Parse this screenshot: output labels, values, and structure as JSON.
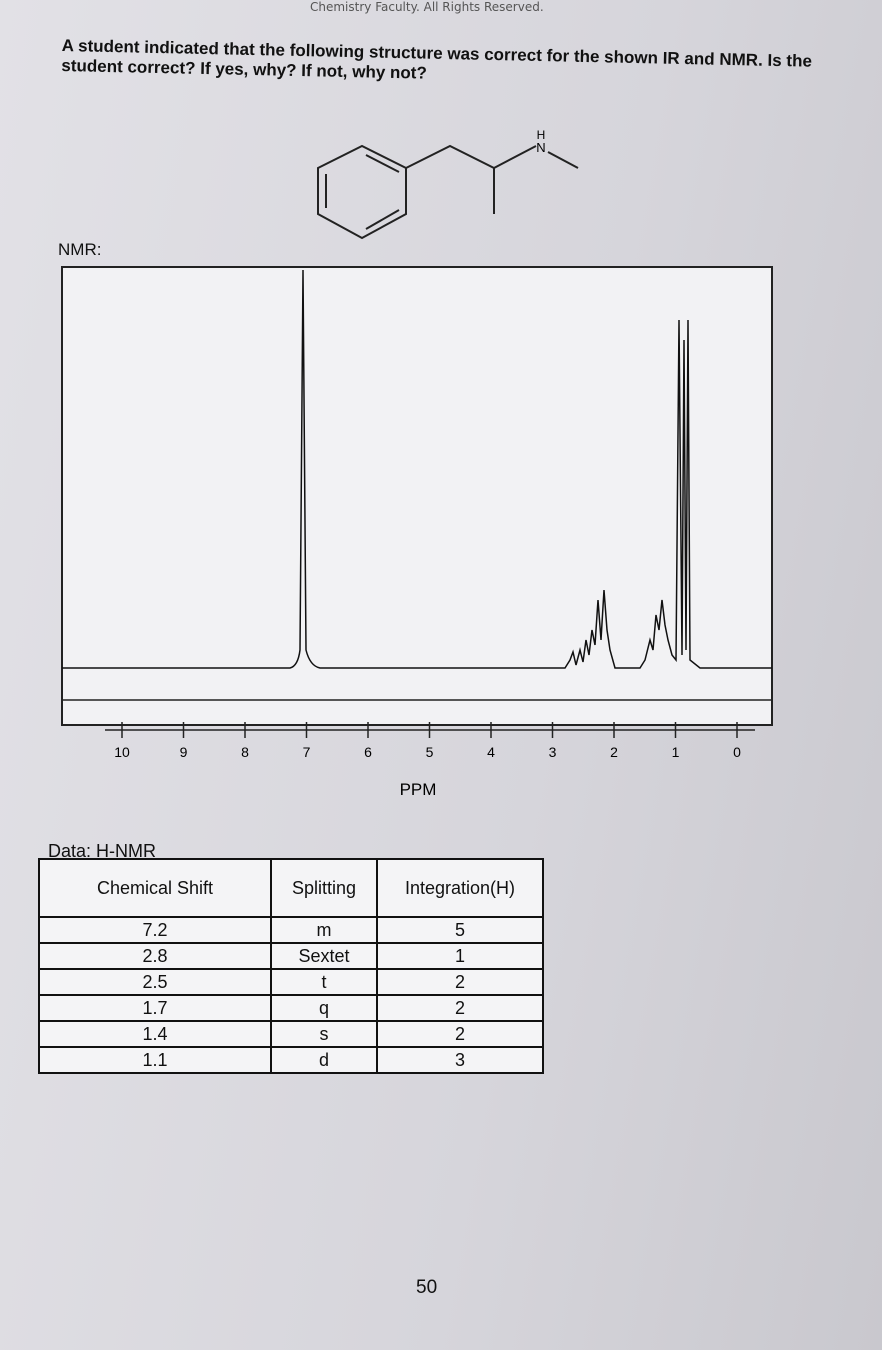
{
  "header": {
    "copyright": "Chemistry Faculty. All Rights Reserved."
  },
  "question": "A student indicated that the following structure was correct for the shown IR and NMR. Is the student correct? If yes, why? If not, why not?",
  "structure": {
    "atoms": [
      "H",
      "N"
    ]
  },
  "nmr_label": "NMR:",
  "spectrum": {
    "xlabel": "PPM",
    "xticks": [
      10,
      9,
      8,
      7,
      6,
      5,
      4,
      3,
      2,
      1,
      0
    ]
  },
  "table": {
    "title": "Data: H-NMR",
    "columns": [
      "Chemical Shift",
      "Splitting",
      "Integration(H)"
    ],
    "rows": [
      [
        7.2,
        "m",
        5
      ],
      [
        2.8,
        "Sextet",
        1
      ],
      [
        2.5,
        "t",
        2
      ],
      [
        1.7,
        "q",
        2
      ],
      [
        1.4,
        "s",
        2
      ],
      [
        1.1,
        "d",
        3
      ]
    ]
  },
  "page_number": 50
}
